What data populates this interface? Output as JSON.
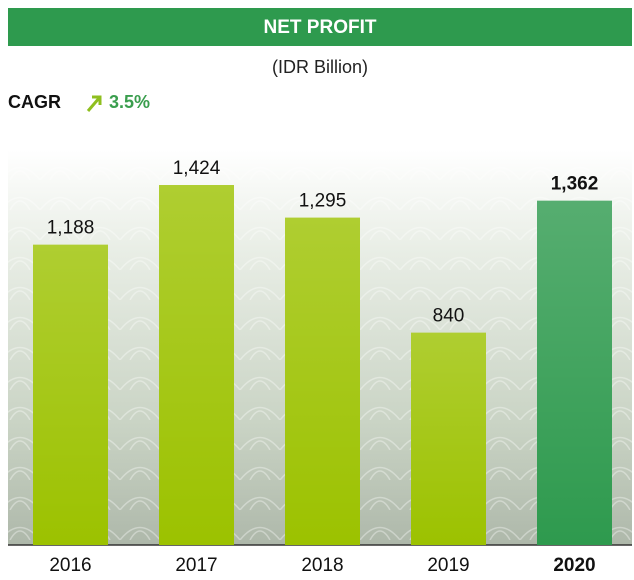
{
  "chart_data": {
    "type": "bar",
    "title": "NET PROFIT",
    "subtitle": "(IDR Billion)",
    "annotation": {
      "label": "CAGR",
      "value": "3.5%"
    },
    "categories": [
      "2016",
      "2017",
      "2018",
      "2019",
      "2020"
    ],
    "values": [
      1188,
      1424,
      1295,
      840,
      1362
    ],
    "value_labels": [
      "1,188",
      "1,424",
      "1,295",
      "840",
      "1,362"
    ],
    "colors": [
      "#9cc200",
      "#9cc200",
      "#9cc200",
      "#9cc200",
      "#2e9a4e"
    ]
  }
}
